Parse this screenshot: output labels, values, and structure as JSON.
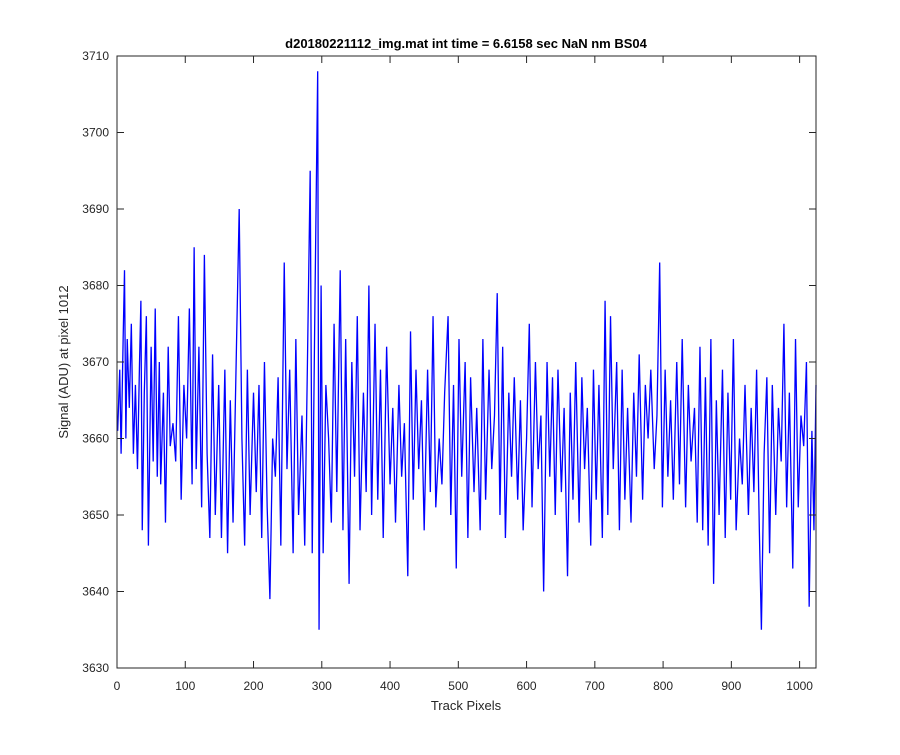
{
  "chart_data": {
    "type": "line",
    "title": "d20180221112_img.mat int time = 6.6158 sec  NaN nm BS04",
    "xlabel": "Track Pixels",
    "ylabel": "Signal (ADU) at pixel 1012",
    "xlim": [
      0,
      1024
    ],
    "ylim": [
      3630,
      3710
    ],
    "xticks": [
      "0",
      "100",
      "200",
      "300",
      "400",
      "500",
      "600",
      "700",
      "800",
      "900",
      "1000"
    ],
    "yticks": [
      "3630",
      "3640",
      "3650",
      "3660",
      "3670",
      "3680",
      "3690",
      "3700",
      "3710"
    ],
    "grid": false,
    "line_color": "#0000ff",
    "series": [
      {
        "x_start": 1,
        "x_step": 1,
        "values_note_sampled_peaks": [
          [
            1,
            3661
          ],
          [
            4,
            3669
          ],
          [
            6,
            3658
          ],
          [
            9,
            3673
          ],
          [
            11,
            3682
          ],
          [
            13,
            3660
          ],
          [
            15,
            3673
          ],
          [
            18,
            3664
          ],
          [
            21,
            3675
          ],
          [
            24,
            3658
          ],
          [
            27,
            3667
          ],
          [
            30,
            3656
          ],
          [
            33,
            3670
          ],
          [
            35,
            3678
          ],
          [
            37,
            3648
          ],
          [
            40,
            3666
          ],
          [
            43,
            3676
          ],
          [
            46,
            3646
          ],
          [
            50,
            3672
          ],
          [
            53,
            3657
          ],
          [
            56,
            3677
          ],
          [
            59,
            3655
          ],
          [
            62,
            3670
          ],
          [
            64,
            3654
          ],
          [
            68,
            3666
          ],
          [
            71,
            3649
          ],
          [
            75,
            3672
          ],
          [
            78,
            3659
          ],
          [
            82,
            3662
          ],
          [
            86,
            3657
          ],
          [
            90,
            3676
          ],
          [
            94,
            3652
          ],
          [
            98,
            3667
          ],
          [
            102,
            3660
          ],
          [
            106,
            3677
          ],
          [
            110,
            3654
          ],
          [
            113,
            3685
          ],
          [
            116,
            3656
          ],
          [
            120,
            3672
          ],
          [
            124,
            3651
          ],
          [
            128,
            3684
          ],
          [
            132,
            3658
          ],
          [
            136,
            3647
          ],
          [
            140,
            3671
          ],
          [
            144,
            3650
          ],
          [
            149,
            3667
          ],
          [
            153,
            3647
          ],
          [
            158,
            3669
          ],
          [
            162,
            3645
          ],
          [
            166,
            3665
          ],
          [
            170,
            3649
          ],
          [
            175,
            3672
          ],
          [
            179,
            3690
          ],
          [
            183,
            3660
          ],
          [
            187,
            3646
          ],
          [
            191,
            3669
          ],
          [
            195,
            3650
          ],
          [
            200,
            3666
          ],
          [
            204,
            3653
          ],
          [
            208,
            3667
          ],
          [
            212,
            3647
          ],
          [
            216,
            3670
          ],
          [
            220,
            3651
          ],
          [
            224,
            3639
          ],
          [
            228,
            3660
          ],
          [
            232,
            3655
          ],
          [
            236,
            3668
          ],
          [
            240,
            3646
          ],
          [
            245,
            3683
          ],
          [
            249,
            3656
          ],
          [
            253,
            3669
          ],
          [
            258,
            3645
          ],
          [
            262,
            3673
          ],
          [
            266,
            3650
          ],
          [
            271,
            3663
          ],
          [
            275,
            3646
          ],
          [
            279,
            3670
          ],
          [
            283,
            3695
          ],
          [
            286,
            3645
          ],
          [
            290,
            3678
          ],
          [
            294,
            3708
          ],
          [
            296,
            3635
          ],
          [
            299,
            3680
          ],
          [
            302,
            3645
          ],
          [
            306,
            3667
          ],
          [
            310,
            3660
          ],
          [
            314,
            3649
          ],
          [
            318,
            3675
          ],
          [
            322,
            3653
          ],
          [
            327,
            3682
          ],
          [
            331,
            3648
          ],
          [
            335,
            3673
          ],
          [
            340,
            3641
          ],
          [
            344,
            3670
          ],
          [
            348,
            3655
          ],
          [
            352,
            3676
          ],
          [
            356,
            3648
          ],
          [
            361,
            3666
          ],
          [
            365,
            3653
          ],
          [
            369,
            3680
          ],
          [
            373,
            3650
          ],
          [
            378,
            3675
          ],
          [
            382,
            3652
          ],
          [
            386,
            3669
          ],
          [
            390,
            3647
          ],
          [
            395,
            3672
          ],
          [
            400,
            3654
          ],
          [
            404,
            3664
          ],
          [
            408,
            3649
          ],
          [
            413,
            3667
          ],
          [
            417,
            3655
          ],
          [
            421,
            3662
          ],
          [
            426,
            3642
          ],
          [
            430,
            3674
          ],
          [
            434,
            3652
          ],
          [
            438,
            3669
          ],
          [
            442,
            3656
          ],
          [
            446,
            3665
          ],
          [
            450,
            3648
          ],
          [
            455,
            3669
          ],
          [
            459,
            3653
          ],
          [
            463,
            3676
          ],
          [
            467,
            3651
          ],
          [
            472,
            3660
          ],
          [
            476,
            3654
          ],
          [
            480,
            3666
          ],
          [
            485,
            3676
          ],
          [
            489,
            3650
          ],
          [
            493,
            3667
          ],
          [
            497,
            3643
          ],
          [
            501,
            3673
          ],
          [
            505,
            3655
          ],
          [
            510,
            3670
          ],
          [
            514,
            3647
          ],
          [
            518,
            3668
          ],
          [
            523,
            3653
          ],
          [
            527,
            3664
          ],
          [
            532,
            3648
          ],
          [
            536,
            3673
          ],
          [
            540,
            3652
          ],
          [
            545,
            3669
          ],
          [
            549,
            3656
          ],
          [
            553,
            3663
          ],
          [
            557,
            3679
          ],
          [
            561,
            3650
          ],
          [
            565,
            3672
          ],
          [
            569,
            3647
          ],
          [
            574,
            3666
          ],
          [
            578,
            3655
          ],
          [
            582,
            3668
          ],
          [
            587,
            3652
          ],
          [
            591,
            3665
          ],
          [
            595,
            3648
          ],
          [
            600,
            3660
          ],
          [
            604,
            3675
          ],
          [
            608,
            3651
          ],
          [
            613,
            3670
          ],
          [
            617,
            3656
          ],
          [
            621,
            3663
          ],
          [
            625,
            3640
          ],
          [
            630,
            3670
          ],
          [
            634,
            3655
          ],
          [
            638,
            3668
          ],
          [
            642,
            3650
          ],
          [
            646,
            3669
          ],
          [
            651,
            3653
          ],
          [
            655,
            3664
          ],
          [
            660,
            3642
          ],
          [
            664,
            3666
          ],
          [
            668,
            3652
          ],
          [
            672,
            3670
          ],
          [
            677,
            3649
          ],
          [
            681,
            3668
          ],
          [
            685,
            3656
          ],
          [
            689,
            3664
          ],
          [
            694,
            3646
          ],
          [
            698,
            3669
          ],
          [
            702,
            3652
          ],
          [
            706,
            3667
          ],
          [
            711,
            3647
          ],
          [
            715,
            3678
          ],
          [
            719,
            3650
          ],
          [
            723,
            3676
          ],
          [
            727,
            3656
          ],
          [
            732,
            3670
          ],
          [
            736,
            3648
          ],
          [
            740,
            3669
          ],
          [
            744,
            3652
          ],
          [
            748,
            3664
          ],
          [
            753,
            3649
          ],
          [
            757,
            3666
          ],
          [
            761,
            3655
          ],
          [
            765,
            3671
          ],
          [
            770,
            3652
          ],
          [
            774,
            3667
          ],
          [
            778,
            3660
          ],
          [
            782,
            3669
          ],
          [
            787,
            3656
          ],
          [
            791,
            3663
          ],
          [
            795,
            3683
          ],
          [
            799,
            3651
          ],
          [
            803,
            3669
          ],
          [
            807,
            3655
          ],
          [
            811,
            3665
          ],
          [
            815,
            3652
          ],
          [
            820,
            3670
          ],
          [
            824,
            3654
          ],
          [
            828,
            3673
          ],
          [
            833,
            3651
          ],
          [
            837,
            3667
          ],
          [
            841,
            3657
          ],
          [
            846,
            3664
          ],
          [
            850,
            3649
          ],
          [
            854,
            3672
          ],
          [
            858,
            3648
          ],
          [
            862,
            3668
          ],
          [
            866,
            3646
          ],
          [
            870,
            3673
          ],
          [
            874,
            3641
          ],
          [
            878,
            3665
          ],
          [
            882,
            3650
          ],
          [
            887,
            3669
          ],
          [
            891,
            3647
          ],
          [
            895,
            3666
          ],
          [
            899,
            3652
          ],
          [
            903,
            3673
          ],
          [
            907,
            3648
          ],
          [
            912,
            3660
          ],
          [
            916,
            3654
          ],
          [
            920,
            3667
          ],
          [
            925,
            3650
          ],
          [
            929,
            3664
          ],
          [
            933,
            3653
          ],
          [
            937,
            3669
          ],
          [
            941,
            3648
          ],
          [
            944,
            3635
          ],
          [
            948,
            3658
          ],
          [
            952,
            3668
          ],
          [
            956,
            3645
          ],
          [
            960,
            3667
          ],
          [
            965,
            3650
          ],
          [
            969,
            3664
          ],
          [
            973,
            3657
          ],
          [
            977,
            3675
          ],
          [
            981,
            3651
          ],
          [
            985,
            3666
          ],
          [
            990,
            3643
          ],
          [
            994,
            3673
          ],
          [
            998,
            3651
          ],
          [
            1002,
            3663
          ],
          [
            1006,
            3659
          ],
          [
            1010,
            3670
          ],
          [
            1014,
            3638
          ],
          [
            1018,
            3661
          ],
          [
            1021,
            3648
          ],
          [
            1024,
            3667
          ]
        ]
      }
    ]
  }
}
